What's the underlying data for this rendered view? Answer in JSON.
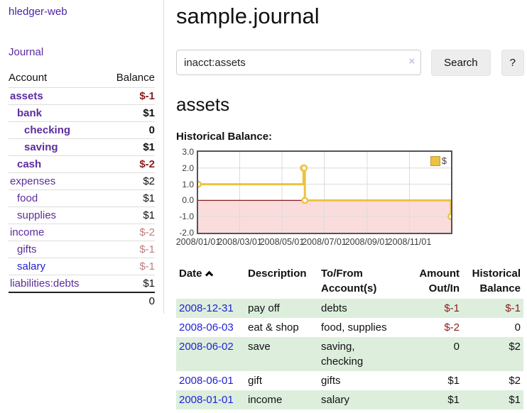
{
  "colors": {
    "purple_link": "#5b2d9e",
    "blue_link": "#2323d3",
    "date_link": "#2222d8",
    "negative_amount": "#8b1c1c",
    "soft_negative_amount": "#bd7e7e",
    "row_highlight_green": "#ddeedd",
    "button_background": "#ededed",
    "series_gold": "#edc240"
  },
  "sidebar": {
    "app_title": "hledger-web",
    "journal_link": "Journal",
    "columns": {
      "account": "Account",
      "balance": "Balance"
    },
    "accounts": [
      {
        "name": "assets",
        "balance": "$-1",
        "depth": 1,
        "bold": true,
        "name_tone": "purple",
        "balance_tone": "neg"
      },
      {
        "name": "bank",
        "balance": "$1",
        "depth": 2,
        "bold": true,
        "name_tone": "purple",
        "balance_tone": "pos"
      },
      {
        "name": "checking",
        "balance": "0",
        "depth": 3,
        "bold": true,
        "name_tone": "purple",
        "balance_tone": "pos"
      },
      {
        "name": "saving",
        "balance": "$1",
        "depth": 3,
        "bold": true,
        "name_tone": "purple",
        "balance_tone": "pos"
      },
      {
        "name": "cash",
        "balance": "$-2",
        "depth": 2,
        "bold": true,
        "name_tone": "purple",
        "balance_tone": "neg"
      },
      {
        "name": "expenses",
        "balance": "$2",
        "depth": 1,
        "bold": false,
        "name_tone": "purple",
        "balance_tone": "pos"
      },
      {
        "name": "food",
        "balance": "$1",
        "depth": 2,
        "bold": false,
        "name_tone": "purple",
        "balance_tone": "pos"
      },
      {
        "name": "supplies",
        "balance": "$1",
        "depth": 2,
        "bold": false,
        "name_tone": "purple",
        "balance_tone": "pos"
      },
      {
        "name": "income",
        "balance": "$-2",
        "depth": 1,
        "bold": false,
        "name_tone": "purple",
        "balance_tone": "soft"
      },
      {
        "name": "gifts",
        "balance": "$-1",
        "depth": 2,
        "bold": false,
        "name_tone": "purple",
        "balance_tone": "soft"
      },
      {
        "name": "salary",
        "balance": "$-1",
        "depth": 2,
        "bold": false,
        "name_tone": "blue",
        "balance_tone": "soft"
      },
      {
        "name": "liabilities:debts",
        "balance": "$1",
        "depth": 1,
        "bold": false,
        "name_tone": "purple",
        "balance_tone": "pos"
      }
    ],
    "total": "0"
  },
  "main": {
    "title": "sample.journal",
    "search": {
      "value": "inacct:assets",
      "clear_icon": "×",
      "button_label": "Search",
      "help_label": "?"
    },
    "account_heading": "assets",
    "section_label": "Historical Balance:"
  },
  "chart_data": {
    "type": "line",
    "title": "Historical Balance:",
    "series": [
      {
        "name": "$",
        "color": "#edc240",
        "step": true,
        "points": [
          [
            "2008-01-01",
            1
          ],
          [
            "2008-06-01",
            2
          ],
          [
            "2008-06-02",
            2
          ],
          [
            "2008-06-03",
            0
          ],
          [
            "2008-12-31",
            -1
          ]
        ]
      }
    ],
    "x_range": [
      "2008-01-01",
      "2008-12-31"
    ],
    "x_ticks": [
      "2008/01/01",
      "2008/03/01",
      "2008/05/01",
      "2008/07/01",
      "2008/09/01",
      "2008/11/01"
    ],
    "y_ticks": [
      "3.0",
      "2.0",
      "1.0",
      "0.0",
      "-1.0",
      "-2.0"
    ],
    "ylim": [
      -2,
      3
    ],
    "grid": true,
    "legend_position": "top-right",
    "negative_region_color": "#fadcdc",
    "zero_line_color": "#871c1c",
    "grid_color": "#dcdcdc"
  },
  "register": {
    "headers": [
      {
        "line1": "Date",
        "line2": "",
        "align": "left",
        "sort": "ascending"
      },
      {
        "line1": "Description",
        "line2": "",
        "align": "left"
      },
      {
        "line1": "To/From",
        "line2": "Account(s)",
        "align": "left"
      },
      {
        "line1": "Amount",
        "line2": "Out/In",
        "align": "right"
      },
      {
        "line1": "Historical",
        "line2": "Balance",
        "align": "right"
      }
    ],
    "rows": [
      {
        "date": "2008-12-31",
        "description": "pay off",
        "accounts": "debts",
        "amount": "$-1",
        "amount_tone": "neg",
        "balance": "$-1",
        "balance_tone": "neg"
      },
      {
        "date": "2008-06-03",
        "description": "eat & shop",
        "accounts": "food, supplies",
        "amount": "$-2",
        "amount_tone": "neg",
        "balance": "0",
        "balance_tone": "pos"
      },
      {
        "date": "2008-06-02",
        "description": "save",
        "accounts": "saving, checking",
        "amount": "0",
        "amount_tone": "pos",
        "balance": "$2",
        "balance_tone": "pos"
      },
      {
        "date": "2008-06-01",
        "description": "gift",
        "accounts": "gifts",
        "amount": "$1",
        "amount_tone": "pos",
        "balance": "$2",
        "balance_tone": "pos"
      },
      {
        "date": "2008-01-01",
        "description": "income",
        "accounts": "salary",
        "amount": "$1",
        "amount_tone": "pos",
        "balance": "$1",
        "balance_tone": "pos"
      }
    ]
  }
}
